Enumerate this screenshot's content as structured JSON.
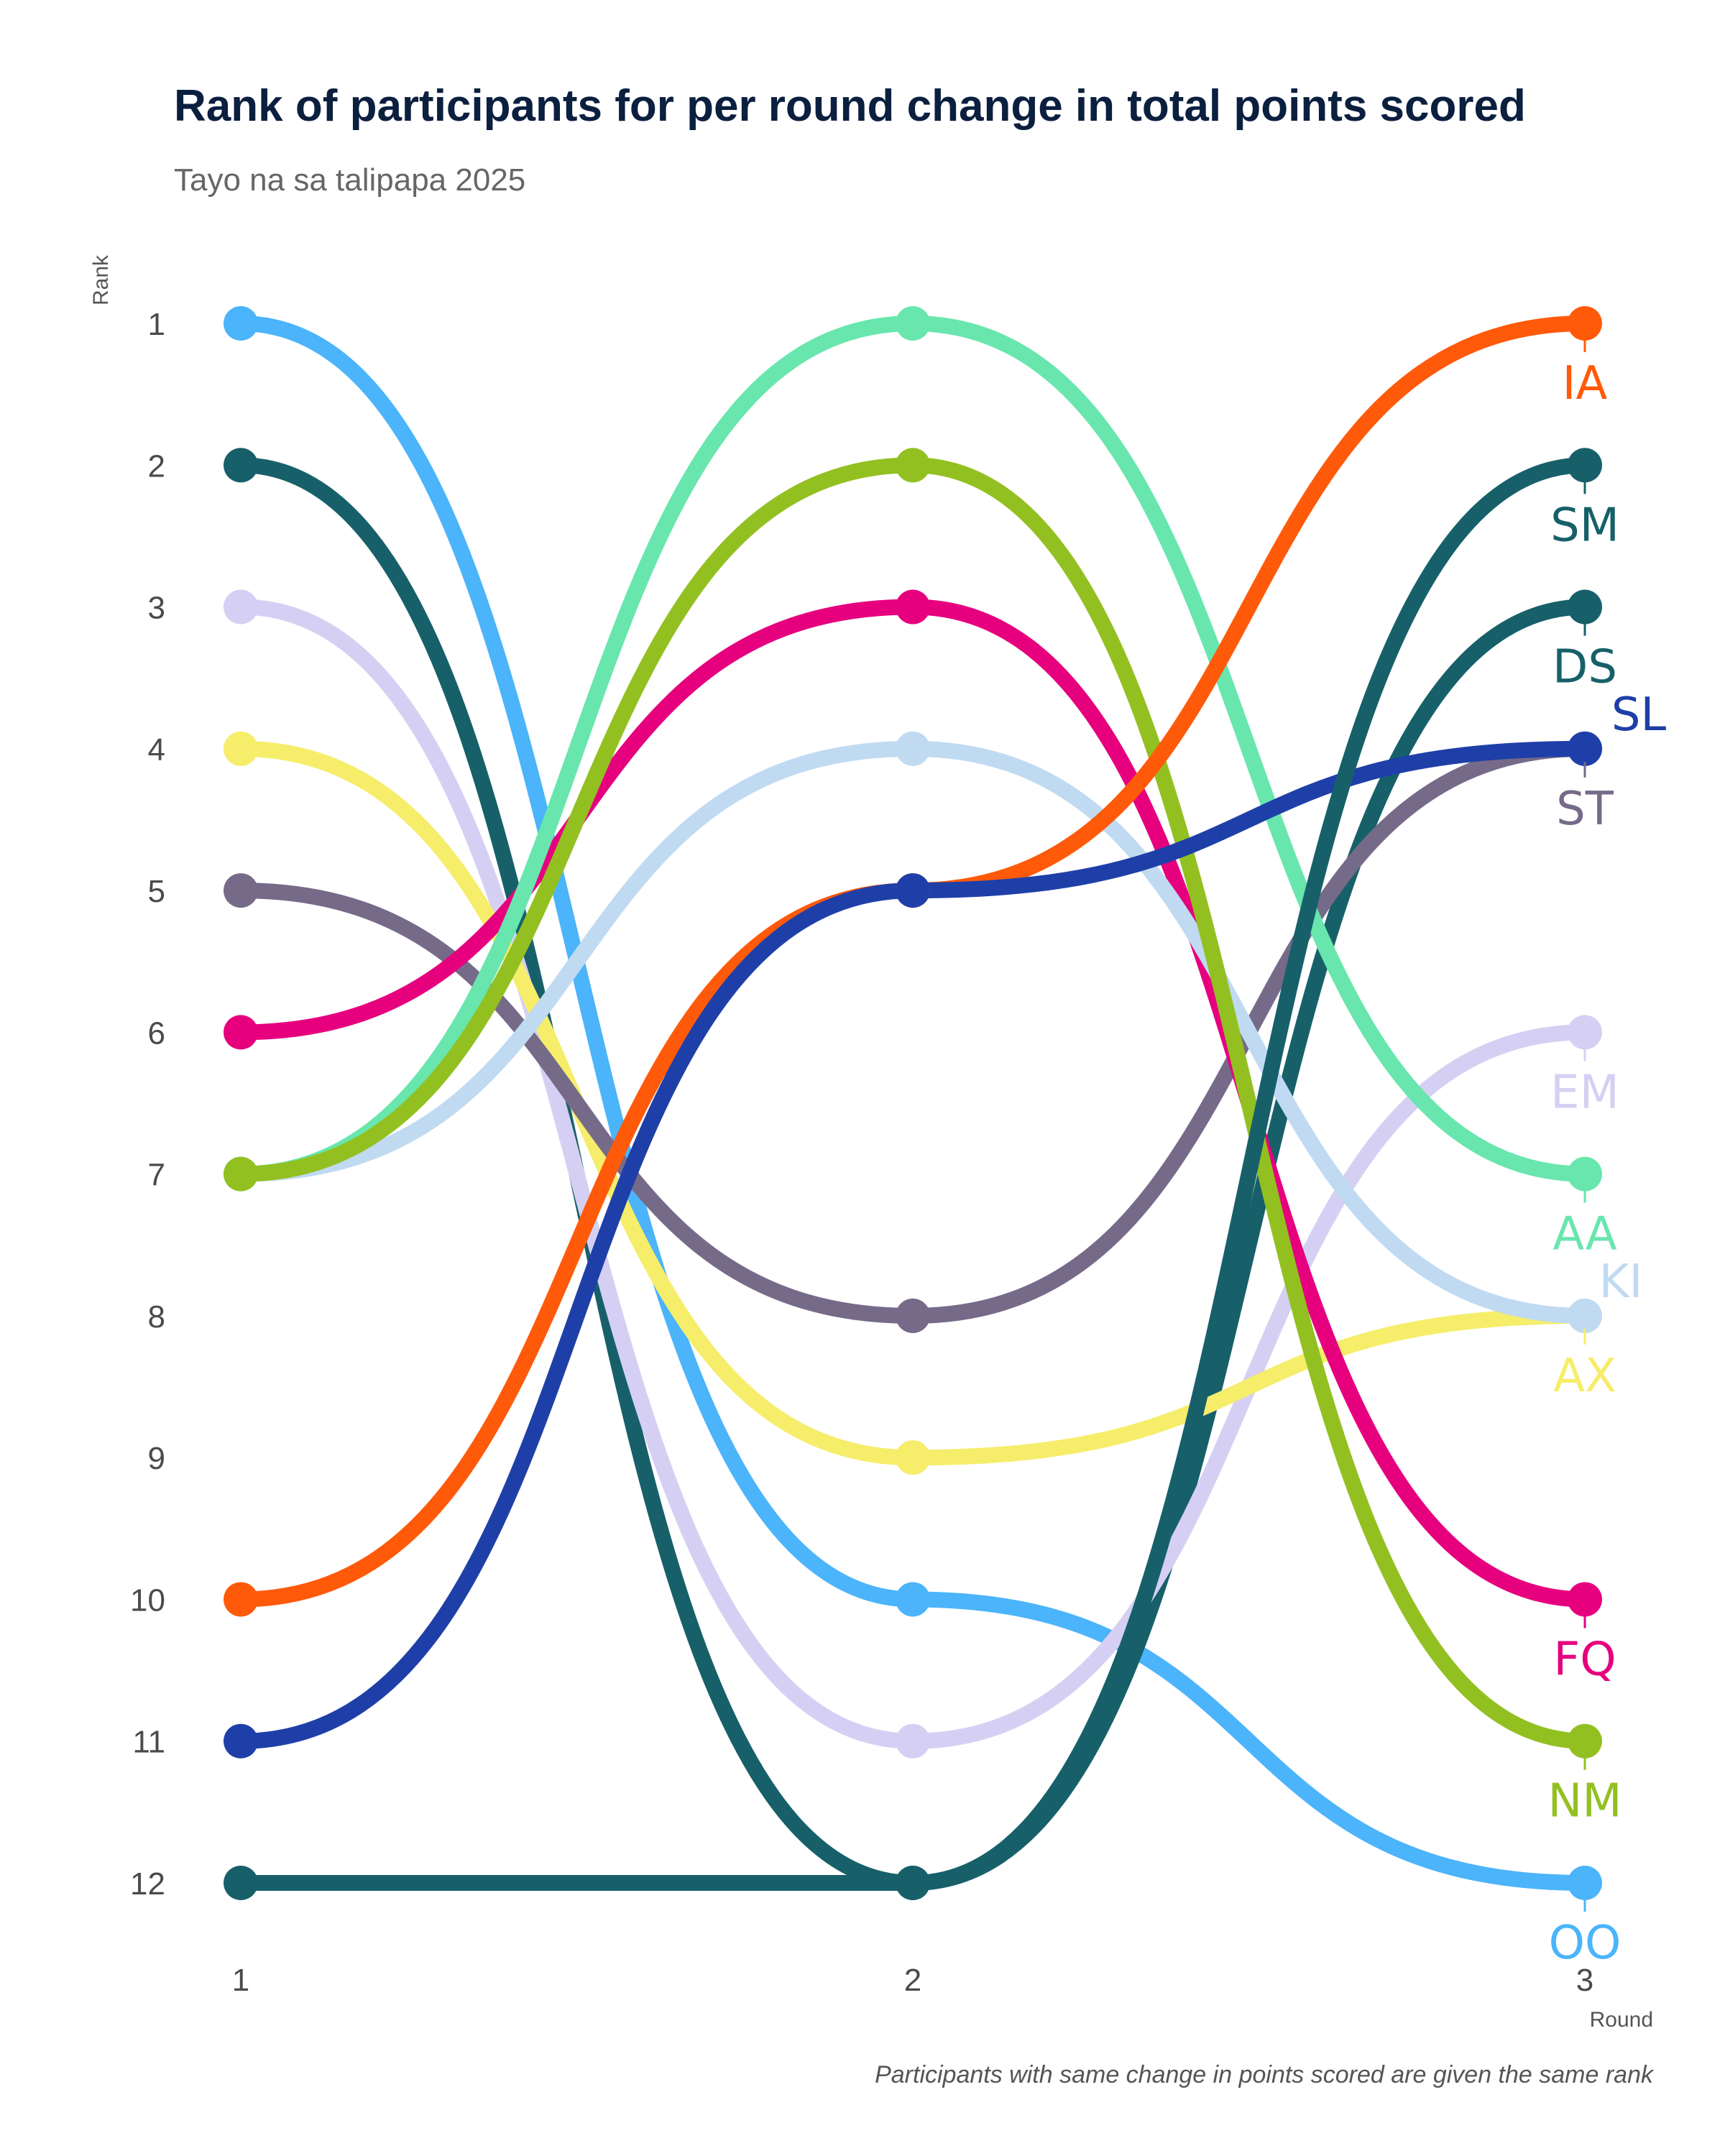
{
  "chart_data": {
    "type": "line",
    "title": "Rank of participants for per round change in total points scored",
    "subtitle": "Tayo na sa talipapa 2025",
    "xlabel": "Round",
    "ylabel": "Rank",
    "caption": "Participants with same change in points scored are given the same rank",
    "x": [
      1,
      2,
      3
    ],
    "x_ticks": [
      "1",
      "2",
      "3"
    ],
    "y_ticks": [
      "1",
      "2",
      "3",
      "4",
      "5",
      "6",
      "7",
      "8",
      "9",
      "10",
      "11",
      "12"
    ],
    "ylim": [
      1,
      12
    ],
    "y_reversed": true,
    "grid": false,
    "legend": "none",
    "series": [
      {
        "name": "OO",
        "color": "#4bb4fa",
        "values": [
          1,
          10,
          12
        ]
      },
      {
        "name": "DS",
        "color": "#17606a",
        "values": [
          2,
          12,
          3
        ]
      },
      {
        "name": "EM",
        "color": "#d5d0f3",
        "values": [
          3,
          11,
          6
        ]
      },
      {
        "name": "AX",
        "color": "#f6ed6a",
        "values": [
          4,
          9,
          8
        ]
      },
      {
        "name": "ST",
        "color": "#766a89",
        "values": [
          5,
          8,
          4
        ]
      },
      {
        "name": "FQ",
        "color": "#e6007e",
        "values": [
          6,
          3,
          10
        ]
      },
      {
        "name": "KI",
        "color": "#c0daf2",
        "values": [
          7,
          4,
          8
        ]
      },
      {
        "name": "AA",
        "color": "#68e6ae",
        "values": [
          7,
          1,
          7
        ]
      },
      {
        "name": "NM",
        "color": "#93c021",
        "values": [
          7,
          2,
          11
        ]
      },
      {
        "name": "IA",
        "color": "#ff5a0a",
        "values": [
          10,
          5,
          1
        ]
      },
      {
        "name": "SL",
        "color": "#1f3fa8",
        "values": [
          11,
          5,
          4
        ]
      },
      {
        "name": "SM",
        "color": "#17606a",
        "values": [
          12,
          12,
          2
        ]
      }
    ]
  }
}
